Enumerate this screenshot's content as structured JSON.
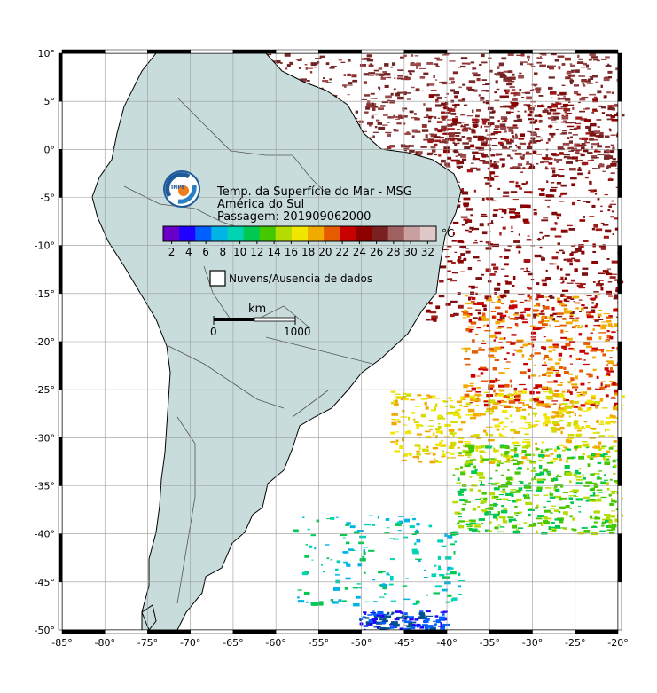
{
  "map": {
    "lon_range": [
      -85,
      -20
    ],
    "lat_range": [
      -50,
      10
    ],
    "lon_ticks": [
      -85,
      -80,
      -75,
      -70,
      -65,
      -60,
      -55,
      -50,
      -45,
      -40,
      -35,
      -30,
      -25,
      -20
    ],
    "lat_ticks": [
      10,
      5,
      0,
      -5,
      -10,
      -15,
      -20,
      -25,
      -30,
      -35,
      -40,
      -45,
      -50
    ],
    "land_color": "#c8dcdc",
    "border_color": "#555555"
  },
  "title": {
    "line1": "Temp. da Superfície do Mar - MSG",
    "line2": "América do Sul",
    "line3": "Passagem: 201909062000"
  },
  "logo": {
    "text": "INPE"
  },
  "colorbar": {
    "unit": "°C",
    "labels": [
      "2",
      "4",
      "6",
      "8",
      "10",
      "12",
      "14",
      "16",
      "18",
      "20",
      "22",
      "24",
      "26",
      "28",
      "30",
      "32"
    ],
    "colors": [
      "#6a00c8",
      "#2000ff",
      "#0060ff",
      "#00b4e6",
      "#00d2b4",
      "#00c850",
      "#46c800",
      "#b4dc00",
      "#f0e600",
      "#f0aa00",
      "#e65a00",
      "#c80000",
      "#8c0000",
      "#7a2020",
      "#a06060",
      "#c8a0a0",
      "#e0c8c8"
    ]
  },
  "legend": {
    "label": "Nuvens/Ausencia de dados"
  },
  "scale": {
    "unit": "km",
    "start": "0",
    "end": "1000"
  }
}
